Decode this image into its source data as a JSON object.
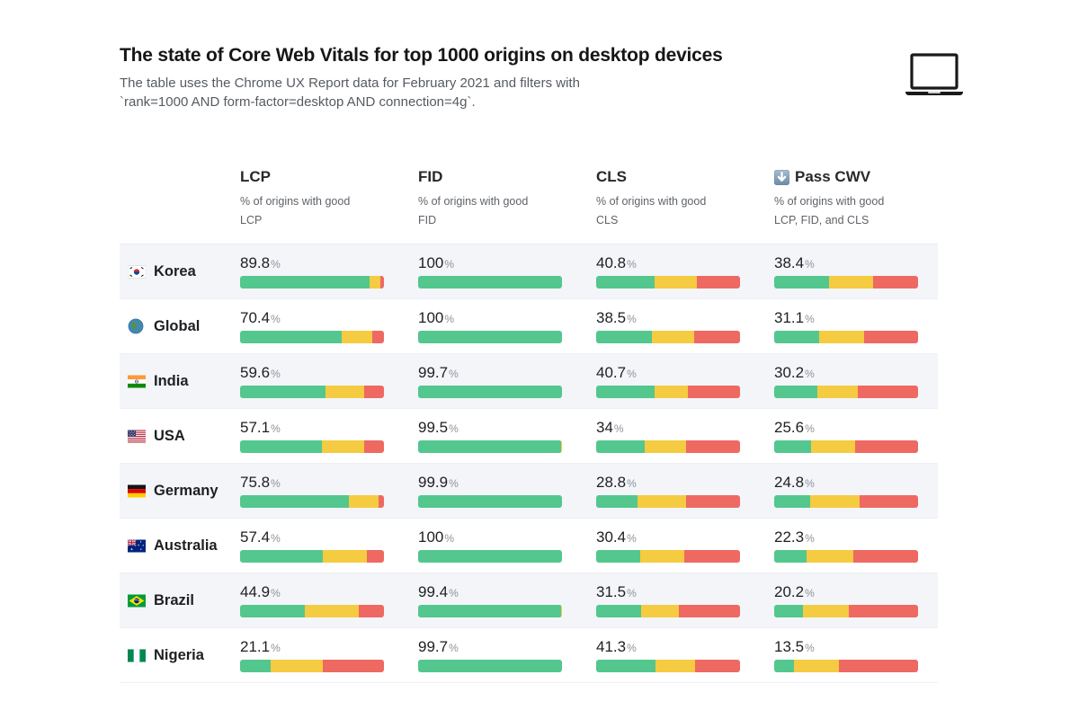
{
  "header": {
    "title": "The state of Core Web Vitals for top 1000 origins on desktop devices",
    "subtitle_line1": "The table uses the Chrome UX Report data for February 2021 and filters with",
    "subtitle_line2": "`rank=1000 AND form-factor=desktop AND connection=4g`.",
    "device_icon": "laptop-icon"
  },
  "unit": "%",
  "colors": {
    "good": "#53c78e",
    "needs_improvement": "#f5cb41",
    "poor": "#ee6962",
    "row_stripe": "#f3f5f9"
  },
  "columns": [
    {
      "key": "lcp",
      "label": "LCP",
      "desc_line1": "% of origins with good",
      "desc_line2": "LCP"
    },
    {
      "key": "fid",
      "label": "FID",
      "desc_line1": "% of origins with good",
      "desc_line2": "FID"
    },
    {
      "key": "cls",
      "label": "CLS",
      "desc_line1": "% of origins with good",
      "desc_line2": "CLS"
    },
    {
      "key": "cwv",
      "label": "Pass CWV",
      "icon": "down-arrow-icon",
      "desc_line1": "% of origins with good",
      "desc_line2": "LCP, FID, and CLS"
    }
  ],
  "rows": [
    {
      "country": "Korea",
      "flag": "kr",
      "flag_icon": "korea-flag-icon",
      "metrics": {
        "lcp": {
          "value": "89.8",
          "segments": [
            89.8,
            7.5,
            2.7
          ]
        },
        "fid": {
          "value": "100",
          "segments": [
            100,
            0,
            0
          ]
        },
        "cls": {
          "value": "40.8",
          "segments": [
            40.8,
            29.4,
            29.8
          ]
        },
        "cwv": {
          "value": "38.4",
          "segments": [
            38.4,
            30.4,
            31.2
          ]
        }
      }
    },
    {
      "country": "Global",
      "flag": "globe",
      "flag_icon": "globe-icon",
      "metrics": {
        "lcp": {
          "value": "70.4",
          "segments": [
            70.4,
            21.5,
            8.1
          ]
        },
        "fid": {
          "value": "100",
          "segments": [
            100,
            0,
            0
          ]
        },
        "cls": {
          "value": "38.5",
          "segments": [
            38.5,
            29.6,
            31.9
          ]
        },
        "cwv": {
          "value": "31.1",
          "segments": [
            31.1,
            31.2,
            37.7
          ]
        }
      }
    },
    {
      "country": "India",
      "flag": "in",
      "flag_icon": "india-flag-icon",
      "metrics": {
        "lcp": {
          "value": "59.6",
          "segments": [
            59.6,
            26.8,
            13.6
          ]
        },
        "fid": {
          "value": "99.7",
          "segments": [
            99.7,
            0.3,
            0
          ]
        },
        "cls": {
          "value": "40.7",
          "segments": [
            40.7,
            23.3,
            36.0
          ]
        },
        "cwv": {
          "value": "30.2",
          "segments": [
            30.2,
            27.7,
            42.1
          ]
        }
      }
    },
    {
      "country": "USA",
      "flag": "us",
      "flag_icon": "usa-flag-icon",
      "metrics": {
        "lcp": {
          "value": "57.1",
          "segments": [
            57.1,
            28.9,
            14.0
          ]
        },
        "fid": {
          "value": "99.5",
          "segments": [
            99.5,
            0.5,
            0
          ]
        },
        "cls": {
          "value": "34",
          "segments": [
            34,
            28.7,
            37.3
          ]
        },
        "cwv": {
          "value": "25.6",
          "segments": [
            25.6,
            30.6,
            43.8
          ]
        }
      }
    },
    {
      "country": "Germany",
      "flag": "de",
      "flag_icon": "germany-flag-icon",
      "metrics": {
        "lcp": {
          "value": "75.8",
          "segments": [
            75.8,
            20.5,
            3.7
          ]
        },
        "fid": {
          "value": "99.9",
          "segments": [
            99.9,
            0.1,
            0
          ]
        },
        "cls": {
          "value": "28.8",
          "segments": [
            28.8,
            33.8,
            37.4
          ]
        },
        "cwv": {
          "value": "24.8",
          "segments": [
            24.8,
            34.4,
            40.8
          ]
        }
      }
    },
    {
      "country": "Australia",
      "flag": "au",
      "flag_icon": "australia-flag-icon",
      "metrics": {
        "lcp": {
          "value": "57.4",
          "segments": [
            57.4,
            30.8,
            11.8
          ]
        },
        "fid": {
          "value": "100",
          "segments": [
            100,
            0,
            0
          ]
        },
        "cls": {
          "value": "30.4",
          "segments": [
            30.4,
            30.8,
            38.8
          ]
        },
        "cwv": {
          "value": "22.3",
          "segments": [
            22.3,
            32.7,
            45.0
          ]
        }
      }
    },
    {
      "country": "Brazil",
      "flag": "br",
      "flag_icon": "brazil-flag-icon",
      "metrics": {
        "lcp": {
          "value": "44.9",
          "segments": [
            44.9,
            37.3,
            17.8
          ]
        },
        "fid": {
          "value": "99.4",
          "segments": [
            99.4,
            0.4,
            0.2
          ]
        },
        "cls": {
          "value": "31.5",
          "segments": [
            31.5,
            25.8,
            42.7
          ]
        },
        "cwv": {
          "value": "20.2",
          "segments": [
            20.2,
            31.7,
            48.1
          ]
        }
      }
    },
    {
      "country": "Nigeria",
      "flag": "ng",
      "flag_icon": "nigeria-flag-icon",
      "metrics": {
        "lcp": {
          "value": "21.1",
          "segments": [
            21.1,
            36.1,
            42.8
          ]
        },
        "fid": {
          "value": "99.7",
          "segments": [
            99.7,
            0.3,
            0
          ]
        },
        "cls": {
          "value": "41.3",
          "segments": [
            41.3,
            27.3,
            31.4
          ]
        },
        "cwv": {
          "value": "13.5",
          "segments": [
            13.5,
            31.7,
            54.8
          ]
        }
      }
    }
  ],
  "chart_data": {
    "type": "table",
    "title": "The state of Core Web Vitals for top 1000 origins on desktop devices",
    "subtitle": "The table uses the Chrome UX Report data for February 2021 and filters with `rank=1000 AND form-factor=desktop AND connection=4g`.",
    "categories": [
      "Korea",
      "Global",
      "India",
      "USA",
      "Germany",
      "Australia",
      "Brazil",
      "Nigeria"
    ],
    "series": [
      {
        "name": "LCP — % of origins with good LCP",
        "values": [
          89.8,
          70.4,
          59.6,
          57.1,
          75.8,
          57.4,
          44.9,
          21.1
        ]
      },
      {
        "name": "FID — % of origins with good FID",
        "values": [
          100,
          100,
          99.7,
          99.5,
          99.9,
          100,
          99.4,
          99.7
        ]
      },
      {
        "name": "CLS — % of origins with good CLS",
        "values": [
          40.8,
          38.5,
          40.7,
          34,
          28.8,
          30.4,
          31.5,
          41.3
        ]
      },
      {
        "name": "Pass CWV — % of origins with good LCP, FID, and CLS",
        "values": [
          38.4,
          31.1,
          30.2,
          25.6,
          24.8,
          22.3,
          20.2,
          13.5
        ]
      }
    ],
    "bar_type": "stacked horizontal bar per cell",
    "segment_colors": {
      "good": "#53c78e",
      "needs_improvement": "#f5cb41",
      "poor": "#ee6962"
    },
    "xlim": [
      0,
      100
    ]
  }
}
